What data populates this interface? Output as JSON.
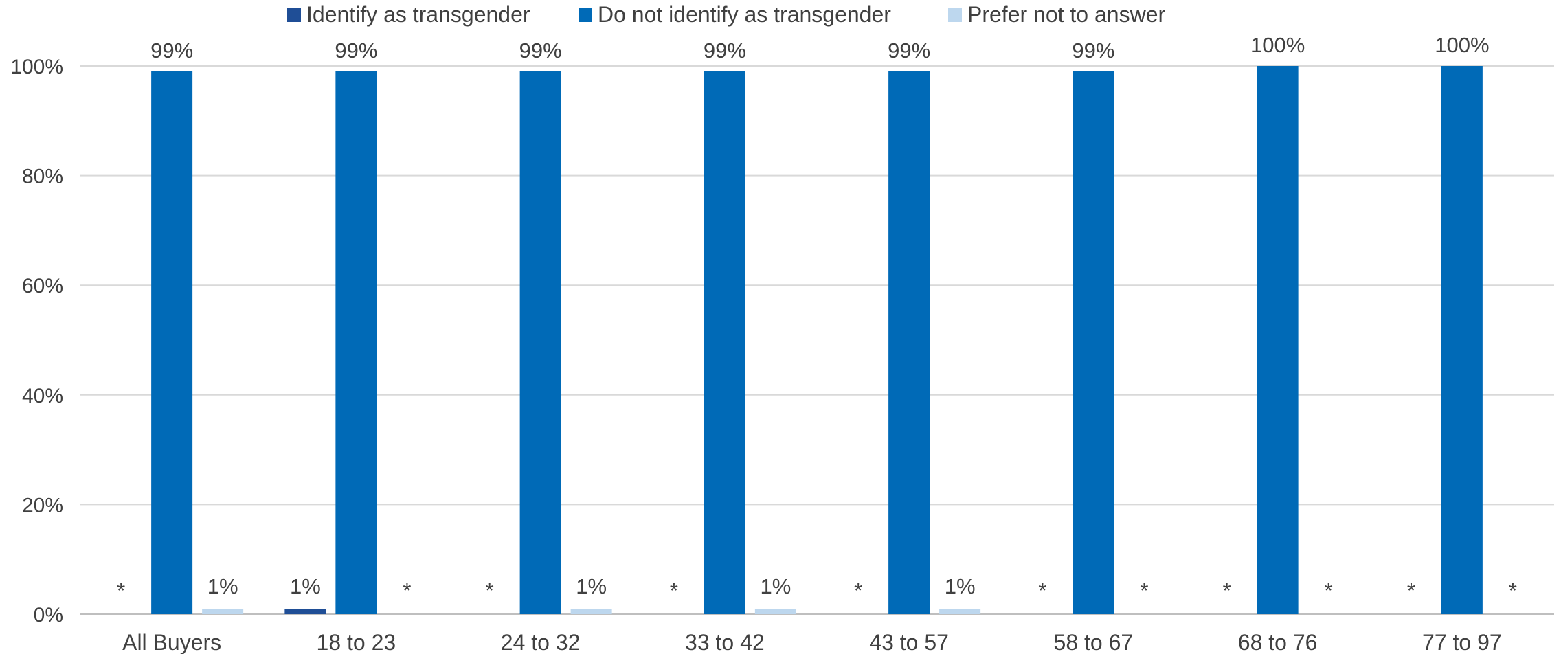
{
  "chart_data": {
    "type": "bar",
    "title": "",
    "xlabel": "",
    "ylabel": "",
    "ylim": [
      0,
      100
    ],
    "y_ticks": [
      "0%",
      "20%",
      "40%",
      "60%",
      "80%",
      "100%"
    ],
    "y_tick_values": [
      0,
      20,
      40,
      60,
      80,
      100
    ],
    "grid": true,
    "legend_position": "top",
    "categories": [
      "All Buyers",
      "18 to 23",
      "24 to 32",
      "33 to 42",
      "43 to 57",
      "58 to 67",
      "68 to 76",
      "77 to 97"
    ],
    "series": [
      {
        "name": "Identify as transgender",
        "color": "#1F4E96",
        "values": [
          0,
          1,
          0,
          0,
          0,
          0,
          0,
          0
        ],
        "labels": [
          "*",
          "1%",
          "*",
          "*",
          "*",
          "*",
          "*",
          "*"
        ]
      },
      {
        "name": "Do not identify as transgender",
        "color": "#006AB7",
        "values": [
          99,
          99,
          99,
          99,
          99,
          99,
          100,
          100
        ],
        "labels": [
          "99%",
          "99%",
          "99%",
          "99%",
          "99%",
          "99%",
          "100%",
          "100%"
        ]
      },
      {
        "name": "Prefer not to answer",
        "color": "#BDD7EE",
        "values": [
          1,
          0,
          1,
          1,
          1,
          0,
          0,
          0
        ],
        "labels": [
          "1%",
          "*",
          "1%",
          "1%",
          "1%",
          "*",
          "*",
          "*"
        ]
      }
    ]
  }
}
